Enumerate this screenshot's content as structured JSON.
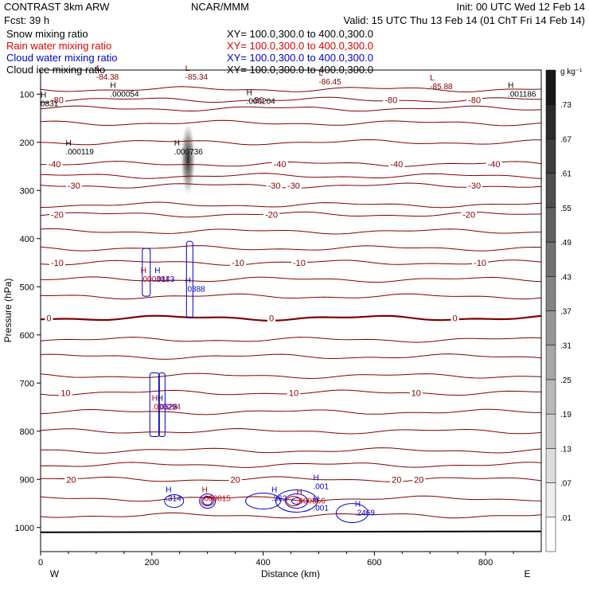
{
  "header": {
    "left_line1": "CONTRAST  3km ARW",
    "center_line1": "NCAR/MMM",
    "right_line1": "Init: 00 UTC Wed 12 Feb 14",
    "left_line2": "Fcst:    39 h",
    "right_line2": "Valid: 15 UTC Thu 13 Feb 14 (01 ChT Fri 14 Feb 14)"
  },
  "fields": [
    {
      "name": "Snow mixing ratio",
      "xy": "XY= 100.0,300.0 to 400.0,300.0",
      "color": "#000000"
    },
    {
      "name": "Rain water mixing ratio",
      "xy": "XY= 100.0,300.0 to 400.0,300.0",
      "color": "#e00000"
    },
    {
      "name": "Cloud water mixing ratio",
      "xy": "XY= 100.0,300.0 to 400.0,300.0",
      "color": "#0000c8"
    },
    {
      "name": "Cloud ice mixing ratio",
      "xy": "XY= 100.0,300.0 to 400.0,300.0",
      "color": "#000000"
    }
  ],
  "chart_data": {
    "type": "cross-section",
    "xlabel": "Distance (km)",
    "ylabel": "Pressure (hPa)",
    "xlim": [
      0,
      900
    ],
    "ylim": [
      1050,
      50
    ],
    "x_ticks": [
      0,
      200,
      400,
      600,
      800
    ],
    "y_ticks": [
      100,
      200,
      300,
      400,
      500,
      600,
      700,
      800,
      900,
      1000
    ],
    "left_end_label": "W",
    "right_end_label": "E",
    "colorbar": {
      "unit": "g kg⁻¹",
      "levels": [
        ".01",
        ".07",
        ".13",
        ".19",
        ".25",
        ".31",
        ".37",
        ".43",
        ".49",
        ".55",
        ".61",
        ".67",
        ".73"
      ]
    },
    "temperature_contours": [
      {
        "label": "-80",
        "p": 112,
        "labels_at": [
          30,
          390,
          630,
          780
        ]
      },
      {
        "label": "-40",
        "p": 245,
        "labels_at": [
          25,
          430,
          640,
          815
        ]
      },
      {
        "label": "-30",
        "p": 290,
        "labels_at": [
          60,
          420,
          455,
          780
        ]
      },
      {
        "label": "-20",
        "p": 350,
        "labels_at": [
          30,
          415,
          770
        ]
      },
      {
        "label": "-10",
        "p": 450,
        "labels_at": [
          30,
          355,
          465,
          790
        ]
      },
      {
        "label": "0",
        "p": 565,
        "labels_at": [
          15,
          415,
          745
        ]
      },
      {
        "label": "10",
        "p": 720,
        "labels_at": [
          45,
          455,
          675
        ]
      },
      {
        "label": "20",
        "p": 900,
        "labels_at": [
          55,
          350,
          640,
          680
        ]
      }
    ],
    "extrema": [
      {
        "type": "L",
        "value": "-84.38",
        "x": 100,
        "p": 70,
        "color": "#800000"
      },
      {
        "type": "L",
        "value": "-85.34",
        "x": 260,
        "p": 70,
        "color": "#800000"
      },
      {
        "type": "L",
        "value": "-86.45",
        "x": 500,
        "p": 80,
        "color": "#800000"
      },
      {
        "type": "L",
        "value": "-85.88",
        "x": 700,
        "p": 90,
        "color": "#800000"
      },
      {
        "type": "H",
        "value": ".000054",
        "x": 125,
        "p": 105,
        "color": "#000000"
      },
      {
        "type": "H",
        "value": ".000204",
        "x": 370,
        "p": 120,
        "color": "#000000"
      },
      {
        "type": "H",
        "value": ".001186",
        "x": 840,
        "p": 105,
        "color": "#000000"
      },
      {
        "type": "H",
        "value": "0831",
        "x": 0,
        "p": 125,
        "color": "#000000"
      },
      {
        "type": "H",
        "value": ".000119",
        "x": 45,
        "p": 225,
        "color": "#000000"
      },
      {
        "type": "H",
        "value": ".000736",
        "x": 240,
        "p": 225,
        "color": "#000000"
      },
      {
        "type": "H",
        "value": ".000381",
        "x": 180,
        "p": 490,
        "color": "#c00000"
      },
      {
        "type": "H",
        "value": ".0143",
        "x": 205,
        "p": 490,
        "color": "#0000c8"
      },
      {
        "type": "H",
        "value": ".0388",
        "x": 260,
        "p": 510,
        "color": "#0000c8"
      },
      {
        "type": "H",
        "value": ".000294",
        "x": 200,
        "p": 755,
        "color": "#c00000"
      },
      {
        "type": "H",
        "value": ".0628",
        "x": 210,
        "p": 755,
        "color": "#0000c8"
      },
      {
        "type": "H",
        "value": ".314",
        "x": 225,
        "p": 945,
        "color": "#0000c8"
      },
      {
        "type": "H",
        "value": ".000815",
        "x": 290,
        "p": 945,
        "color": "#c00000"
      },
      {
        "type": "H",
        "value": ".362",
        "x": 415,
        "p": 945,
        "color": "#0000c8"
      },
      {
        "type": "H",
        "value": ".001",
        "x": 490,
        "p": 920,
        "color": "#0000c8"
      },
      {
        "type": "H",
        "value": ".000866",
        "x": 460,
        "p": 950,
        "color": "#c00000"
      },
      {
        "type": "H",
        "value": ".001",
        "x": 490,
        "p": 965,
        "color": "#0000c8"
      },
      {
        "type": "H",
        "value": ".2469",
        "x": 565,
        "p": 975,
        "color": "#0000c8"
      }
    ]
  }
}
